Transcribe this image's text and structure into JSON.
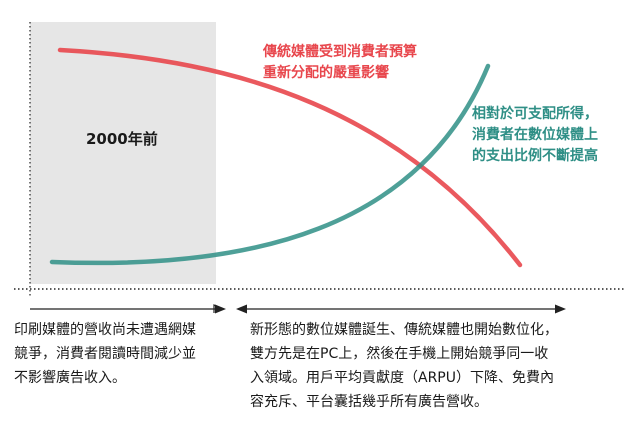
{
  "era_label": "2000年前",
  "red_curve_label": [
    "傳統媒體受到消費者預算",
    "重新分配的嚴重影響"
  ],
  "teal_curve_label": [
    "相對於可支配所得，",
    "消費者在數位媒體上",
    "的支出比例不斷提高"
  ],
  "left_description": [
    "印刷媒體的營收尚未遭遇網媒",
    "競爭，消費者閱讀時間減少並",
    "不影響廣告收入。"
  ],
  "right_description": [
    "新形態的數位媒體誕生、傳統媒體也開始數位化，",
    "雙方先是在PC上，然後在手機上開始競爭同一收",
    "入領域。用戶平均貢獻度（ARPU）下降、免費內",
    "容充斥、平台囊括幾乎所有廣告營收。"
  ],
  "colors": {
    "traditional_media": "#e8474d",
    "digital_media": "#2f8f86",
    "shaded_era": "#e6e6e6",
    "text": "#1a1a1a"
  }
}
